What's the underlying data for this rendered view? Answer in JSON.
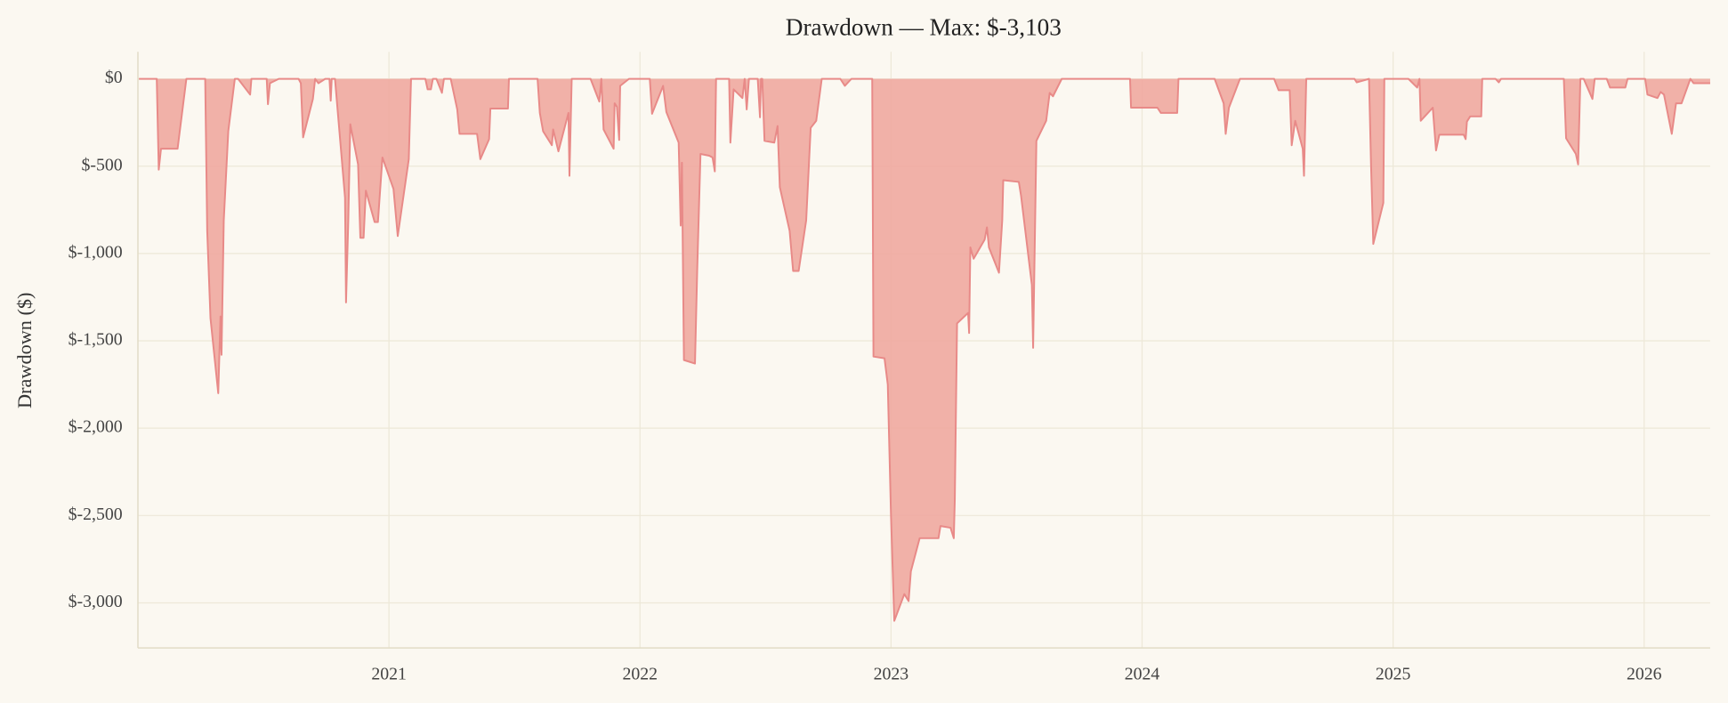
{
  "chart_data": {
    "type": "area",
    "title": "Drawdown — Max: $-3,103",
    "ylabel": "Drawdown ($)",
    "color": "#f0a8a0",
    "line_color": "#e88a88",
    "grid": true,
    "xlim": [
      2020.0,
      2026.263
    ],
    "xticks": [
      2021,
      2022,
      2023,
      2024,
      2025,
      2026
    ],
    "ylim": [
      -3258,
      155
    ],
    "yticks": [
      {
        "value": 0,
        "label": "$0"
      },
      {
        "value": -500,
        "label": "$-500"
      },
      {
        "value": -1000,
        "label": "$-1,000"
      },
      {
        "value": -1500,
        "label": "$-1,500"
      },
      {
        "value": -2000,
        "label": "$-2,000"
      },
      {
        "value": -2500,
        "label": "$-2,500"
      },
      {
        "value": -3000,
        "label": "$-3,000"
      }
    ],
    "x": [
      2020.004,
      2020.075,
      2020.083,
      2020.092,
      2020.158,
      2020.193,
      2020.268,
      2020.276,
      2020.289,
      2020.32,
      2020.329,
      2020.333,
      2020.342,
      2020.36,
      2020.386,
      2020.399,
      2020.447,
      2020.452,
      2020.513,
      2020.518,
      2020.526,
      2020.561,
      2020.64,
      2020.649,
      2020.658,
      2020.697,
      2020.706,
      2020.719,
      2020.746,
      2020.763,
      2020.768,
      2020.772,
      2020.785,
      2020.825,
      2020.829,
      2020.838,
      2020.846,
      2020.877,
      2020.886,
      2020.899,
      2020.908,
      2020.943,
      2020.956,
      2020.974,
      2021.018,
      2021.035,
      2021.079,
      2021.088,
      2021.145,
      2021.154,
      2021.167,
      2021.175,
      2021.189,
      2021.211,
      2021.219,
      2021.246,
      2021.272,
      2021.281,
      2021.351,
      2021.364,
      2021.399,
      2021.404,
      2021.474,
      2021.478,
      2021.592,
      2021.601,
      2021.614,
      2021.649,
      2021.654,
      2021.675,
      2021.715,
      2021.719,
      2021.728,
      2021.803,
      2021.838,
      2021.846,
      2021.855,
      2021.895,
      2021.899,
      2021.908,
      2021.917,
      2021.921,
      2021.956,
      2022.039,
      2022.048,
      2022.092,
      2022.105,
      2022.154,
      2022.162,
      2022.167,
      2022.175,
      2022.219,
      2022.228,
      2022.241,
      2022.276,
      2022.289,
      2022.298,
      2022.303,
      2022.355,
      2022.36,
      2022.373,
      2022.408,
      2022.417,
      2022.425,
      2022.434,
      2022.469,
      2022.478,
      2022.482,
      2022.487,
      2022.496,
      2022.535,
      2022.548,
      2022.557,
      2022.596,
      2022.61,
      2022.632,
      2022.662,
      2022.68,
      2022.702,
      2022.724,
      2022.798,
      2022.816,
      2022.842,
      2022.925,
      2022.93,
      2022.974,
      2022.987,
      2023.0,
      2023.013,
      2023.053,
      2023.07,
      2023.079,
      2023.114,
      2023.189,
      2023.197,
      2023.237,
      2023.25,
      2023.254,
      2023.263,
      2023.307,
      2023.311,
      2023.316,
      2023.329,
      2023.373,
      2023.382,
      2023.39,
      2023.43,
      2023.443,
      2023.447,
      2023.509,
      2023.518,
      2023.561,
      2023.566,
      2023.579,
      2023.618,
      2023.632,
      2023.645,
      2023.68,
      2023.952,
      2023.956,
      2024.061,
      2024.075,
      2024.14,
      2024.145,
      2024.289,
      2024.325,
      2024.333,
      2024.346,
      2024.39,
      2024.526,
      2024.544,
      2024.588,
      2024.596,
      2024.61,
      2024.64,
      2024.645,
      2024.654,
      2024.846,
      2024.855,
      2024.904,
      2024.912,
      2024.921,
      2024.961,
      2024.965,
      2025.061,
      2025.096,
      2025.105,
      2025.11,
      2025.158,
      2025.171,
      2025.184,
      2025.281,
      2025.289,
      2025.294,
      2025.307,
      2025.351,
      2025.355,
      2025.408,
      2025.421,
      2025.43,
      2025.68,
      2025.689,
      2025.728,
      2025.737,
      2025.746,
      2025.759,
      2025.794,
      2025.803,
      2025.851,
      2025.864,
      2025.925,
      2025.934,
      2026.004,
      2026.013,
      2026.053,
      2026.066,
      2026.079,
      2026.11,
      2026.127,
      2026.149,
      2026.184,
      2026.197,
      2026.263
    ],
    "values": [
      0,
      0,
      -520,
      -400,
      -400,
      0,
      0,
      -870,
      -1370,
      -1800,
      -1360,
      -1580,
      -810,
      -300,
      0,
      0,
      -90,
      0,
      0,
      -145,
      -25,
      0,
      0,
      -25,
      -335,
      -115,
      0,
      -25,
      0,
      0,
      -125,
      0,
      0,
      -680,
      -1280,
      -810,
      -260,
      -490,
      -910,
      -910,
      -640,
      -820,
      -820,
      -450,
      -630,
      -900,
      -460,
      0,
      0,
      -60,
      -60,
      0,
      0,
      -80,
      0,
      0,
      -175,
      -315,
      -315,
      -460,
      -345,
      -170,
      -170,
      0,
      0,
      -195,
      -300,
      -380,
      -290,
      -415,
      -195,
      -555,
      0,
      0,
      -130,
      0,
      -290,
      -400,
      -140,
      -160,
      -350,
      -40,
      0,
      0,
      -200,
      -40,
      -190,
      -365,
      -840,
      -480,
      -1610,
      -1630,
      -1090,
      -430,
      -440,
      -450,
      -530,
      0,
      0,
      -365,
      -60,
      -110,
      0,
      -175,
      0,
      0,
      -220,
      0,
      0,
      -355,
      -365,
      -270,
      -620,
      -870,
      -1100,
      -1100,
      -810,
      -280,
      -240,
      0,
      0,
      -40,
      0,
      0,
      -1590,
      -1600,
      -1750,
      -2510,
      -3103,
      -2950,
      -2990,
      -2820,
      -2630,
      -2630,
      -2560,
      -2570,
      -2630,
      -2410,
      -1400,
      -1340,
      -1455,
      -965,
      -1030,
      -920,
      -850,
      -965,
      -1110,
      -810,
      -580,
      -590,
      -670,
      -1180,
      -1540,
      -355,
      -240,
      -80,
      -100,
      0,
      0,
      -165,
      -165,
      -195,
      -195,
      0,
      0,
      -140,
      -315,
      -165,
      0,
      0,
      -65,
      -65,
      -380,
      -240,
      -400,
      -555,
      0,
      0,
      -20,
      0,
      -490,
      -945,
      -710,
      0,
      0,
      -50,
      0,
      -240,
      -165,
      -410,
      -320,
      -320,
      -345,
      -245,
      -215,
      -215,
      0,
      0,
      -20,
      0,
      0,
      -340,
      -430,
      -490,
      0,
      0,
      -115,
      0,
      0,
      -50,
      -50,
      0,
      0,
      -90,
      -110,
      -75,
      -90,
      -315,
      -140,
      -140,
      0,
      -25,
      -25
    ]
  }
}
